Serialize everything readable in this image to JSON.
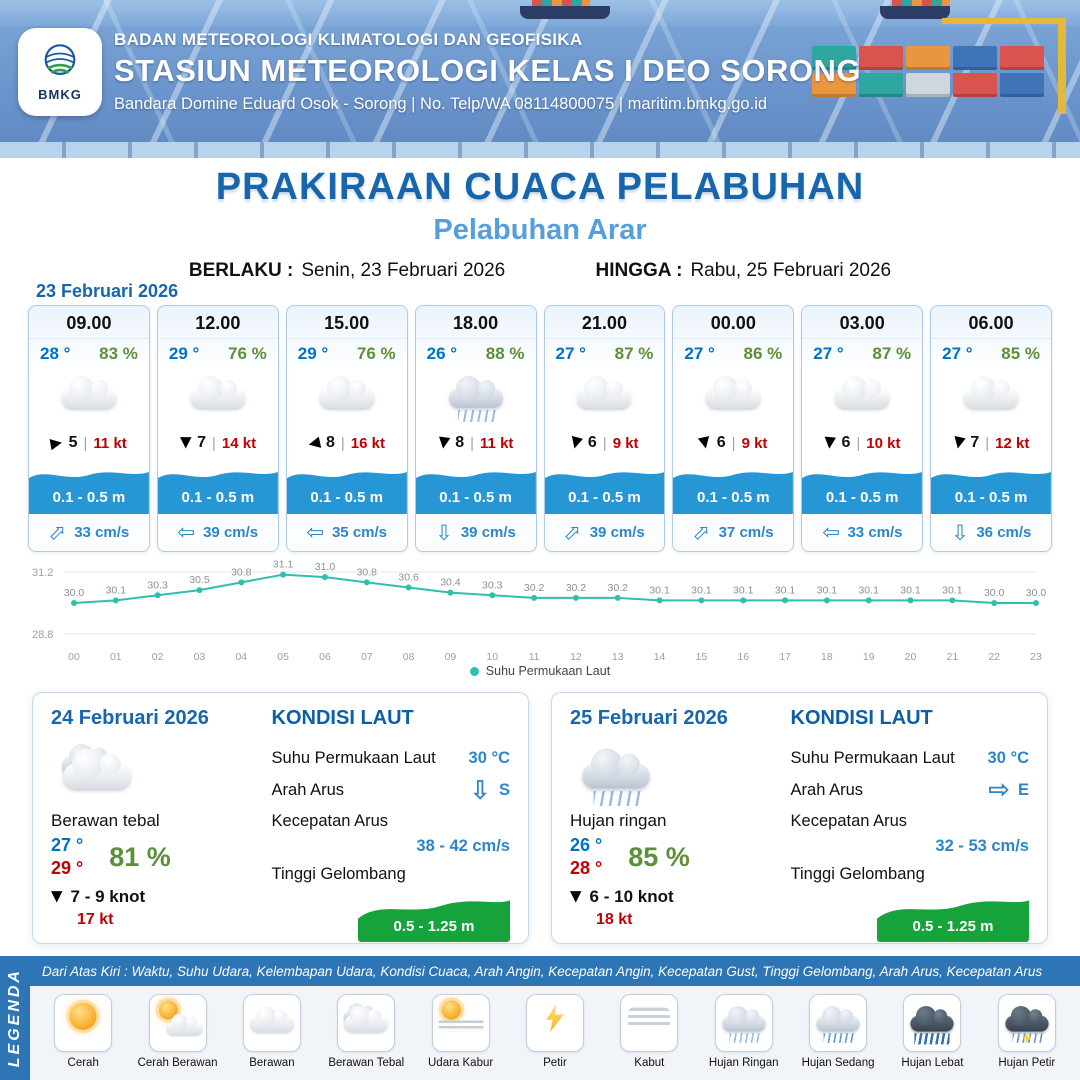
{
  "header": {
    "logo": "BMKG",
    "agency": "BADAN METEOROLOGI KLIMATOLOGI DAN GEOFISIKA",
    "station": "STASIUN METEOROLOGI KELAS I DEO SORONG",
    "contact": "Bandara Domine Eduard Osok - Sorong | No. Telp/WA 08114800075 | maritim.bmkg.go.id"
  },
  "title": {
    "main": "PRAKIRAAN CUACA PELABUHAN",
    "subtitle": "Pelabuhan Arar",
    "berlaku_label": "BERLAKU :",
    "berlaku_value": "Senin, 23 Februari 2026",
    "hingga_label": "HINGGA :",
    "hingga_value": "Rabu, 25 Februari 2026"
  },
  "hourly_date": "23 Februari 2026",
  "hourly": [
    {
      "time": "09.00",
      "temp": "28 °",
      "rh": "83 %",
      "icon": "berawan",
      "wind_rot": 80,
      "wind": "5",
      "gust": "11 kt",
      "wave": "0.1 - 0.5 m",
      "cur_rot": -45,
      "cur": "33 cm/s"
    },
    {
      "time": "12.00",
      "temp": "29 °",
      "rh": "76 %",
      "icon": "berawan",
      "wind_rot": 180,
      "wind": "7",
      "gust": "14 kt",
      "wave": "0.1 - 0.5 m",
      "cur_rot": 180,
      "cur": "39 cm/s"
    },
    {
      "time": "15.00",
      "temp": "29 °",
      "rh": "76 %",
      "icon": "berawan",
      "wind_rot": 258,
      "wind": "8",
      "gust": "16 kt",
      "wave": "0.1 - 0.5 m",
      "cur_rot": 180,
      "cur": "35 cm/s"
    },
    {
      "time": "18.00",
      "temp": "26 °",
      "rh": "88 %",
      "icon": "hujan-ringan",
      "wind_rot": 188,
      "wind": "8",
      "gust": "11 kt",
      "wave": "0.1 - 0.5 m",
      "cur_rot": 90,
      "cur": "39 cm/s"
    },
    {
      "time": "21.00",
      "temp": "27 °",
      "rh": "87 %",
      "icon": "berawan",
      "wind_rot": 195,
      "wind": "6",
      "gust": "9 kt",
      "wave": "0.1 - 0.5 m",
      "cur_rot": -45,
      "cur": "39 cm/s"
    },
    {
      "time": "00.00",
      "temp": "27 °",
      "rh": "86 %",
      "icon": "berawan",
      "wind_rot": 168,
      "wind": "6",
      "gust": "9 kt",
      "wave": "0.1 - 0.5 m",
      "cur_rot": -45,
      "cur": "37 cm/s"
    },
    {
      "time": "03.00",
      "temp": "27 °",
      "rh": "87 %",
      "icon": "berawan",
      "wind_rot": 185,
      "wind": "6",
      "gust": "10 kt",
      "wave": "0.1 - 0.5 m",
      "cur_rot": 180,
      "cur": "33 cm/s"
    },
    {
      "time": "06.00",
      "temp": "27 °",
      "rh": "85 %",
      "icon": "berawan",
      "wind_rot": 192,
      "wind": "7",
      "gust": "12 kt",
      "wave": "0.1 - 0.5 m",
      "cur_rot": 90,
      "cur": "36 cm/s"
    }
  ],
  "chart_data": {
    "type": "line",
    "title": "Suhu Permukaan Laut",
    "x": [
      "00",
      "01",
      "02",
      "03",
      "04",
      "05",
      "06",
      "07",
      "08",
      "09",
      "10",
      "11",
      "12",
      "13",
      "14",
      "15",
      "16",
      "17",
      "18",
      "19",
      "20",
      "21",
      "22",
      "23"
    ],
    "values": [
      30.0,
      30.1,
      30.3,
      30.5,
      30.8,
      31.1,
      31.0,
      30.8,
      30.6,
      30.4,
      30.3,
      30.2,
      30.2,
      30.2,
      30.1,
      30.1,
      30.1,
      30.1,
      30.1,
      30.1,
      30.1,
      30.1,
      30.0,
      30.0
    ],
    "ylim": [
      28.8,
      31.2
    ],
    "xlabel": "",
    "ylabel": "",
    "grid": "top-bottom-only",
    "legend_label": "Suhu Permukaan Laut",
    "legend_position": "bottom",
    "line_color": "#2fbfae"
  },
  "daily": [
    {
      "date": "24 Februari 2026",
      "icon": "berawan-tebal",
      "condition": "Berawan tebal",
      "temp_min": "27 °",
      "temp_max": "29 °",
      "rh": "81 %",
      "wind_rot": 180,
      "wind": "7 - 9 knot",
      "gust": "17 kt",
      "sea": {
        "heading": "KONDISI LAUT",
        "sst_label": "Suhu Permukaan Laut",
        "sst": "30 °C",
        "dir_label": "Arah Arus",
        "dir": "S",
        "dir_rot": 90,
        "speed_label": "Kecepatan Arus",
        "speed": "38 - 42 cm/s",
        "wave_label": "Tinggi Gelombang",
        "wave": "0.5 - 1.25 m"
      }
    },
    {
      "date": "25 Februari 2026",
      "icon": "hujan-ringan",
      "condition": "Hujan ringan",
      "temp_min": "26 °",
      "temp_max": "28 °",
      "rh": "85 %",
      "wind_rot": 180,
      "wind": "6 - 10 knot",
      "gust": "18 kt",
      "sea": {
        "heading": "KONDISI LAUT",
        "sst_label": "Suhu Permukaan Laut",
        "sst": "30 °C",
        "dir_label": "Arah Arus",
        "dir": "E",
        "dir_rot": 0,
        "speed_label": "Kecepatan Arus",
        "speed": "32 - 53 cm/s",
        "wave_label": "Tinggi Gelombang",
        "wave": "0.5 - 1.25 m"
      }
    }
  ],
  "legend": {
    "ribbon": "LEGENDA",
    "strip": "Dari Atas Kiri : Waktu, Suhu Udara, Kelembapan Udara, Kondisi Cuaca, Arah Angin, Kecepatan Angin, Kecepatan Gust, Tinggi Gelombang, Arah Arus, Kecepatan Arus",
    "items": [
      {
        "label": "Cerah",
        "icon": "cerah"
      },
      {
        "label": "Cerah Berawan",
        "icon": "cerah-berawan"
      },
      {
        "label": "Berawan",
        "icon": "berawan"
      },
      {
        "label": "Berawan Tebal",
        "icon": "berawan-tebal"
      },
      {
        "label": "Udara Kabur",
        "icon": "udara-kabur"
      },
      {
        "label": "Petir",
        "icon": "petir"
      },
      {
        "label": "Kabut",
        "icon": "kabut"
      },
      {
        "label": "Hujan Ringan",
        "icon": "hujan-ringan"
      },
      {
        "label": "Hujan Sedang",
        "icon": "hujan-sedang"
      },
      {
        "label": "Hujan Lebat",
        "icon": "hujan-lebat"
      },
      {
        "label": "Hujan Petir",
        "icon": "hujan-petir"
      }
    ]
  },
  "colors": {
    "brand_blue": "#1766ad",
    "light_blue": "#55a0dc",
    "temp_blue": "#0072c6",
    "temp_red": "#c00000",
    "rh_green": "#5d8f3a",
    "gust_red": "#c00000",
    "wave_blue": "#2697d4",
    "wave_green": "#17a33b",
    "current_blue": "#2e86c9",
    "legend_blue": "#2e75b6",
    "chart_line": "#2fbfae"
  }
}
